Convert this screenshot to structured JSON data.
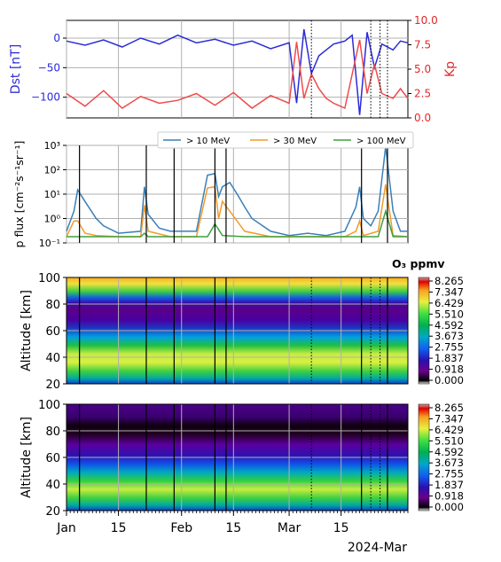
{
  "chart_data": [
    {
      "type": "line",
      "panel": "dst-kp",
      "ylabel": "Dst [nT]",
      "ylabel_color": "#2b2bd9",
      "yticks": [
        0,
        -50,
        -100
      ],
      "ylim": [
        -135,
        30
      ],
      "y2label": "Kp",
      "y2label_color": "#e0282a",
      "y2ticks": [
        "0.0",
        "2.5",
        "5.0",
        "7.5",
        "10.0"
      ],
      "y2lim": [
        0,
        10
      ],
      "series": [
        {
          "color": "#2b2bd9",
          "x": [
            0,
            5,
            10,
            15,
            20,
            25,
            30,
            35,
            40,
            45,
            50,
            55,
            60,
            62,
            64,
            66,
            68,
            70,
            72,
            75,
            77,
            79,
            81,
            83,
            85,
            88,
            90,
            92
          ],
          "values": [
            -5,
            -12,
            -3,
            -15,
            0,
            -10,
            5,
            -8,
            -2,
            -12,
            -5,
            -18,
            -8,
            -110,
            15,
            -60,
            -30,
            -20,
            -10,
            -5,
            5,
            -130,
            10,
            -50,
            -10,
            -20,
            -5,
            -8
          ]
        },
        {
          "color": "#f04a4a",
          "axis": "y2",
          "x": [
            0,
            5,
            10,
            15,
            20,
            25,
            30,
            35,
            40,
            45,
            50,
            55,
            60,
            62,
            64,
            66,
            68,
            70,
            72,
            75,
            77,
            79,
            81,
            83,
            85,
            88,
            90,
            92
          ],
          "values": [
            2.5,
            1.2,
            2.8,
            1.0,
            2.2,
            1.5,
            1.8,
            2.5,
            1.3,
            2.6,
            1.0,
            2.3,
            1.5,
            7.8,
            2.0,
            4.5,
            3.0,
            2.0,
            1.5,
            1.0,
            4.5,
            8.0,
            2.5,
            5.5,
            2.5,
            2.0,
            3.0,
            2.0
          ]
        }
      ],
      "vlines_dotted": [
        66,
        82,
        84.5,
        86.5
      ]
    },
    {
      "type": "line",
      "panel": "proton-flux",
      "ylabel": "p flux [cm⁻²s⁻¹sr⁻¹]",
      "yscale": "log",
      "ylim": [
        0.1,
        1000
      ],
      "yticks": [
        "10⁻¹",
        "10⁰",
        "10¹",
        "10²",
        "10³"
      ],
      "legend": [
        "> 10 MeV",
        "> 30 MeV",
        "> 100 MeV"
      ],
      "legend_position": "top",
      "series": [
        {
          "name": "> 10 MeV",
          "color": "#3a7fb8",
          "x": [
            0,
            2,
            3,
            5,
            8,
            10,
            14,
            20,
            21,
            22,
            25,
            28,
            30,
            35,
            38,
            40,
            41,
            42,
            44,
            46,
            48,
            50,
            55,
            60,
            65,
            70,
            75,
            78,
            79,
            80,
            82,
            84,
            86,
            88,
            90,
            92
          ],
          "values": [
            0.3,
            2,
            15,
            5,
            1,
            0.5,
            0.25,
            0.3,
            20,
            1.5,
            0.4,
            0.3,
            0.3,
            0.3,
            60,
            70,
            8,
            20,
            30,
            10,
            3,
            1,
            0.3,
            0.2,
            0.25,
            0.2,
            0.3,
            3,
            20,
            1,
            0.5,
            2,
            900,
            2,
            0.3,
            0.3
          ]
        },
        {
          "name": "> 30 MeV",
          "color": "#f29b2a",
          "x": [
            0,
            2,
            3,
            5,
            8,
            14,
            20,
            21,
            22,
            28,
            35,
            38,
            40,
            41,
            42,
            44,
            48,
            55,
            65,
            75,
            78,
            79,
            80,
            84,
            86,
            88,
            92
          ],
          "values": [
            0.18,
            0.8,
            0.8,
            0.25,
            0.2,
            0.18,
            0.18,
            3.5,
            0.3,
            0.18,
            0.18,
            18,
            20,
            1,
            5,
            2,
            0.3,
            0.18,
            0.18,
            0.18,
            0.3,
            0.8,
            0.2,
            0.3,
            25,
            0.2,
            0.18
          ]
        },
        {
          "name": "> 100 MeV",
          "color": "#3fa03f",
          "x": [
            0,
            20,
            21,
            22,
            38,
            40,
            42,
            48,
            84,
            86,
            88,
            92
          ],
          "values": [
            0.18,
            0.18,
            0.25,
            0.18,
            0.18,
            0.6,
            0.2,
            0.18,
            0.18,
            2,
            0.18,
            0.18
          ]
        }
      ],
      "event_lines": [
        3.5,
        21.5,
        29,
        40,
        43,
        79.5,
        86.5
      ]
    },
    {
      "type": "heatmap",
      "panel": "o3-top",
      "title": "O₃ ppmv",
      "ylabel": "Altitude [km]",
      "ylim": [
        20,
        100
      ],
      "yticks": [
        20,
        40,
        60,
        80,
        100
      ],
      "colorbar_ticks": [
        "8.265",
        "7.347",
        "6.429",
        "5.510",
        "4.592",
        "3.673",
        "2.755",
        "1.837",
        "0.918",
        "0.000"
      ],
      "vlines_dotted": [
        66,
        82,
        84.5
      ]
    },
    {
      "type": "heatmap",
      "panel": "o3-bottom",
      "ylabel": "Altitude [km]",
      "ylim": [
        20,
        100
      ],
      "yticks": [
        20,
        40,
        60,
        80,
        100
      ],
      "colorbar_ticks": [
        "8.265",
        "7.347",
        "6.429",
        "5.510",
        "4.592",
        "3.673",
        "2.755",
        "1.837",
        "0.918",
        "0.000"
      ],
      "xtick_labels": [
        "Jan",
        "15",
        "Feb",
        "15",
        "Mar",
        "15"
      ],
      "xtick_days": [
        0,
        14,
        31,
        45,
        60,
        74
      ],
      "xlabel": "2024-Mar",
      "xlim": [
        0,
        92
      ]
    }
  ]
}
